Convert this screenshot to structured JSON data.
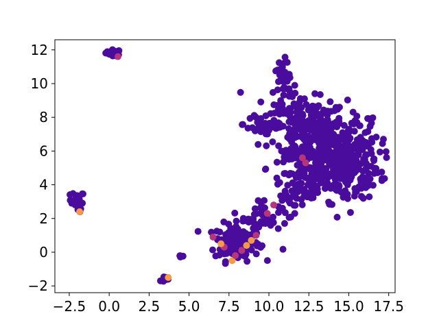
{
  "chart_data": {
    "type": "scatter",
    "title": "",
    "xlabel": "",
    "ylabel": "",
    "xlim": [
      -3.4,
      17.9
    ],
    "ylim": [
      -2.4,
      12.6
    ],
    "grid": false,
    "legend": "none",
    "x_ticks": [
      -2.5,
      0.0,
      2.5,
      5.0,
      7.5,
      10.0,
      12.5,
      15.0,
      17.5
    ],
    "x_tick_labels": [
      "−2.5",
      "0.0",
      "2.5",
      "5.0",
      "7.5",
      "10.0",
      "12.5",
      "15.0",
      "17.5"
    ],
    "y_ticks": [
      -2,
      0,
      2,
      4,
      6,
      8,
      10,
      12
    ],
    "y_tick_labels": [
      "−2",
      "0",
      "2",
      "4",
      "6",
      "8",
      "10",
      "12"
    ],
    "colormap": "plasma",
    "colors": {
      "dominant": "#4a0c9c",
      "mid": "#b5367a",
      "high": "#f59a48"
    },
    "clusters": [
      {
        "cx": 0.3,
        "cy": 11.85,
        "sx": 0.25,
        "sy": 0.08,
        "n": 30
      },
      {
        "cx": 0.55,
        "cy": 11.65,
        "sx": 0.05,
        "sy": 0.05,
        "n": 3
      },
      {
        "cx": -2.0,
        "cy": 3.1,
        "sx": 0.22,
        "sy": 0.25,
        "n": 22
      },
      {
        "cx": -1.9,
        "cy": 2.45,
        "sx": 0.08,
        "sy": 0.08,
        "n": 4
      },
      {
        "cx": 3.4,
        "cy": -1.6,
        "sx": 0.2,
        "sy": 0.08,
        "n": 8
      },
      {
        "cx": 4.5,
        "cy": -0.25,
        "sx": 0.07,
        "sy": 0.05,
        "n": 4
      },
      {
        "cx": 8.2,
        "cy": 9.5,
        "sx": 0.02,
        "sy": 0.02,
        "n": 1
      },
      {
        "cx": 10.9,
        "cy": 0.1,
        "sx": 0.03,
        "sy": 0.03,
        "n": 1
      },
      {
        "cx": 8.0,
        "cy": 0.6,
        "sx": 0.7,
        "sy": 0.55,
        "n": 140
      },
      {
        "cx": 9.6,
        "cy": 2.2,
        "sx": 0.6,
        "sy": 0.5,
        "n": 45
      },
      {
        "cx": 11.6,
        "cy": 3.4,
        "sx": 0.6,
        "sy": 0.5,
        "n": 35
      },
      {
        "cx": 10.9,
        "cy": 9.7,
        "sx": 0.4,
        "sy": 0.8,
        "n": 45
      },
      {
        "cx": 9.8,
        "cy": 7.6,
        "sx": 0.7,
        "sy": 0.4,
        "n": 40
      },
      {
        "cx": 12.5,
        "cy": 7.2,
        "sx": 1.2,
        "sy": 0.9,
        "n": 220
      },
      {
        "cx": 14.5,
        "cy": 5.5,
        "sx": 1.2,
        "sy": 1.2,
        "n": 380
      },
      {
        "cx": 12.5,
        "cy": 4.7,
        "sx": 0.9,
        "sy": 0.6,
        "n": 90
      }
    ],
    "highlights": [
      {
        "x": 7.7,
        "y": -0.5,
        "c": "high"
      },
      {
        "x": 8.9,
        "y": 0.7,
        "c": "high"
      },
      {
        "x": 8.6,
        "y": 0.4,
        "c": "high"
      },
      {
        "x": 7.2,
        "y": 0.3,
        "c": "mid"
      },
      {
        "x": 6.5,
        "y": 0.9,
        "c": "mid"
      },
      {
        "x": 7.9,
        "y": -0.2,
        "c": "mid"
      },
      {
        "x": 8.3,
        "y": 0.1,
        "c": "mid"
      },
      {
        "x": 9.2,
        "y": 1.0,
        "c": "mid"
      },
      {
        "x": 7.0,
        "y": 0.5,
        "c": "high"
      },
      {
        "x": 3.7,
        "y": -1.5,
        "c": "high"
      },
      {
        "x": 0.55,
        "y": 11.6,
        "c": "mid"
      },
      {
        "x": -1.85,
        "y": 2.4,
        "c": "high"
      },
      {
        "x": 12.1,
        "y": 5.6,
        "c": "mid"
      },
      {
        "x": 12.3,
        "y": 5.3,
        "c": "mid"
      },
      {
        "x": 9.9,
        "y": 2.3,
        "c": "mid"
      },
      {
        "x": 10.3,
        "y": 2.8,
        "c": "mid"
      }
    ]
  }
}
